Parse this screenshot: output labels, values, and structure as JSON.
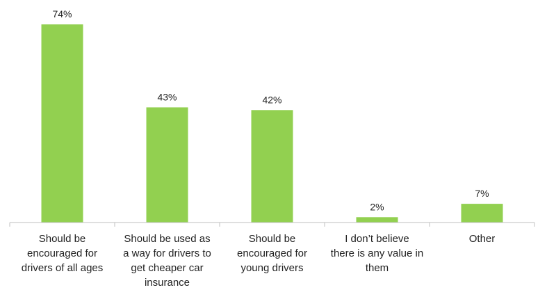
{
  "chart_data": {
    "type": "bar",
    "title": "",
    "xlabel": "",
    "ylabel": "",
    "categories": [
      [
        "Should be",
        "encouraged for",
        "drivers of all ages"
      ],
      [
        "Should be used as",
        "a way for drivers to",
        "get cheaper car",
        "insurance"
      ],
      [
        "Should be",
        "encouraged for",
        "young drivers"
      ],
      [
        "I don’t believe",
        "there is any value in",
        "them"
      ],
      [
        "Other"
      ]
    ],
    "values": [
      74,
      43,
      42,
      2,
      7
    ],
    "data_labels": [
      "74%",
      "43%",
      "42%",
      "2%",
      "7%"
    ],
    "value_unit": "%",
    "ylim": [
      0,
      80
    ],
    "grid": false,
    "legend": "none",
    "bar_color": "#92d050",
    "axis_color": "#bfbfbf"
  }
}
